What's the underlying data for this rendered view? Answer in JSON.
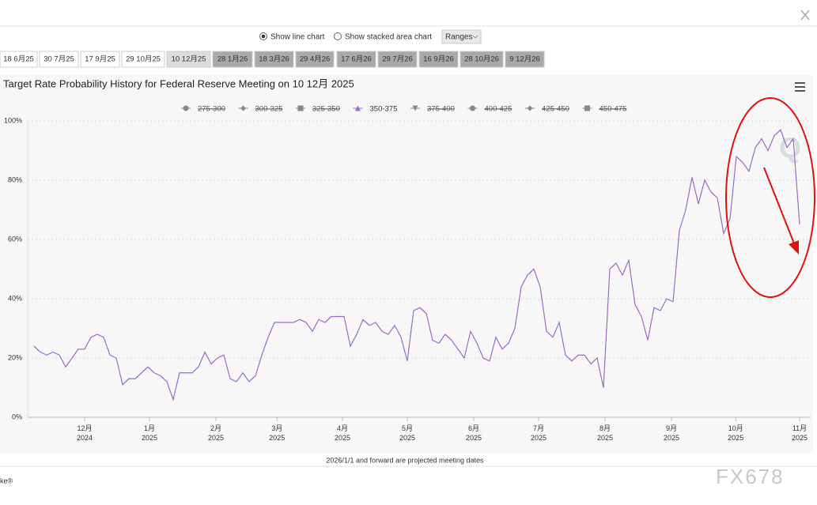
{
  "controls": {
    "radio_line": "Show line chart",
    "radio_stacked": "Show stacked area chart",
    "ranges": "Ranges"
  },
  "meeting_tabs": [
    "18 6月25",
    "30 7月25",
    "17 9月25",
    "29 10月25",
    "10 12月25",
    "28 1月26",
    "18 3月26",
    "29 4月26",
    "17 6月26",
    "29 7月26",
    "16 9月26",
    "28 10月26",
    "9 12月26"
  ],
  "footnote": "2026/1/1 and forward are projected meeting dates",
  "brand_fragment": "ke®",
  "watermark": "FX678",
  "chart_logo": "Q",
  "chart_data": {
    "type": "line",
    "title": "Target Rate Probability History for Federal Reserve Meeting on 10 12月 2025",
    "xlim": [
      -1,
      121
    ],
    "xticks": [
      {
        "value": 8,
        "label": "12月\n2024"
      },
      {
        "value": 18.25,
        "label": "1月\n2025"
      },
      {
        "value": 28.75,
        "label": "2月\n2025"
      },
      {
        "value": 38.4,
        "label": "3月\n2025"
      },
      {
        "value": 48.75,
        "label": "4月\n2025"
      },
      {
        "value": 59,
        "label": "5月\n2025"
      },
      {
        "value": 69.5,
        "label": "6月\n2025"
      },
      {
        "value": 79.75,
        "label": "7月\n2025"
      },
      {
        "value": 90.25,
        "label": "8月\n2025"
      },
      {
        "value": 100.75,
        "label": "9月\n2025"
      },
      {
        "value": 110.9,
        "label": "10月\n2025"
      },
      {
        "value": 121,
        "label": "11月\n2025"
      }
    ],
    "ylim": [
      0,
      100
    ],
    "yticks": [
      {
        "value": 0,
        "label": "0%"
      },
      {
        "value": 20,
        "label": "20%"
      },
      {
        "value": 40,
        "label": "40%"
      },
      {
        "value": 60,
        "label": "60%"
      },
      {
        "value": 80,
        "label": "80%"
      },
      {
        "value": 100,
        "label": "100%"
      }
    ],
    "grid": true,
    "series": [
      {
        "name": "275-300",
        "color": "#666666",
        "marker": "circle",
        "visible": false
      },
      {
        "name": "300-325",
        "color": "#666666",
        "marker": "diamond",
        "visible": false
      },
      {
        "name": "325-350",
        "color": "#666666",
        "marker": "square",
        "visible": false
      },
      {
        "name": "350-375",
        "color": "#9a6cc4",
        "marker": "triangle",
        "visible": true,
        "values": [
          24,
          22,
          21,
          22,
          21,
          17,
          20,
          23,
          23,
          27,
          28,
          27,
          21,
          20,
          11,
          13,
          13,
          15,
          17,
          15,
          14,
          12,
          6,
          15,
          15,
          15,
          17,
          22,
          18,
          20,
          21,
          13,
          12,
          15,
          12,
          14,
          21,
          27,
          32,
          32,
          32,
          32,
          33,
          32,
          29,
          33,
          32,
          34,
          34,
          34,
          24,
          28,
          33,
          31,
          32,
          29,
          28,
          31,
          27,
          19,
          36,
          37,
          35,
          26,
          25,
          28,
          26,
          23,
          20,
          29,
          25,
          20,
          19,
          27,
          23,
          25,
          30,
          44,
          48,
          50,
          44,
          29,
          27,
          32,
          21,
          19,
          21,
          21,
          18,
          20,
          10,
          50,
          52,
          48,
          53,
          38,
          34,
          26,
          37,
          36,
          40,
          39,
          63,
          70,
          81,
          72,
          80,
          76,
          74,
          62,
          67,
          88,
          86,
          83,
          91,
          94,
          90,
          95,
          97,
          91,
          94,
          65
        ]
      },
      {
        "name": "375-400",
        "color": "#666666",
        "marker": "triangle-down",
        "visible": false
      },
      {
        "name": "400-425",
        "color": "#666666",
        "marker": "circle",
        "visible": false
      },
      {
        "name": "425-450",
        "color": "#666666",
        "marker": "diamond",
        "visible": false
      },
      {
        "name": "450-475",
        "color": "#666666",
        "marker": "square",
        "visible": false
      }
    ]
  }
}
